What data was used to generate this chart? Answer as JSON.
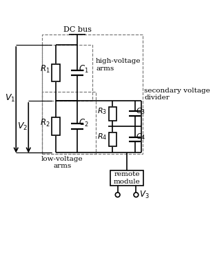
{
  "background_color": "#ffffff",
  "figure_width": 3.09,
  "figure_height": 4.0,
  "dpi": 100,
  "labels": {
    "dc_bus": "DC bus",
    "high_voltage_arms": "high-voltage\narms",
    "secondary_voltage_divider": "secondary voltage\ndivider",
    "low_voltage_arms": "low-voltage\narms",
    "remote_module": "remote\nmodule",
    "V1": "$V_1$",
    "V2": "$V_2$",
    "V3": "$V_3$",
    "R1": "$R_1$",
    "R2": "$R_2$",
    "R3": "$R_3$",
    "R4": "$R_4$",
    "C1": "$C_1$",
    "C2": "$C_2$",
    "C3": "$C_3$",
    "C4": "$C_4$"
  },
  "colors": {
    "line": "#000000",
    "dashed_box": "#777777",
    "background": "#ffffff"
  }
}
